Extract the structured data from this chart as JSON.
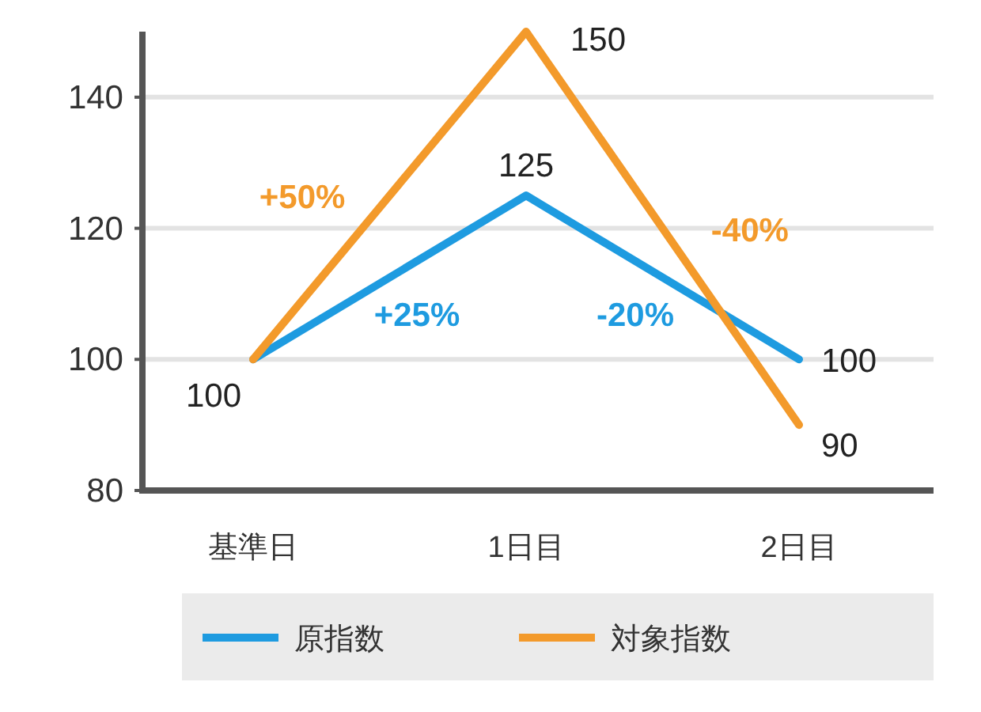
{
  "chart_data": {
    "type": "line",
    "categories": [
      "基準日",
      "1日目",
      "2日目"
    ],
    "series": [
      {
        "name": "原指数",
        "color": "#1e9be0",
        "values": [
          100,
          125,
          100
        ],
        "value_labels": [
          "100",
          "125",
          "100"
        ]
      },
      {
        "name": "対象指数",
        "color": "#f39a2b",
        "values": [
          100,
          150,
          90
        ],
        "value_labels": [
          null,
          "150",
          "90"
        ]
      }
    ],
    "ylim": [
      80,
      150
    ],
    "yticks": [
      80,
      100,
      120,
      140
    ],
    "grid": "y",
    "legend": "bottom",
    "marker": "none",
    "line_style": "solid",
    "annotations": [
      "+50%",
      "+25%",
      "-20%",
      "-40%"
    ]
  }
}
